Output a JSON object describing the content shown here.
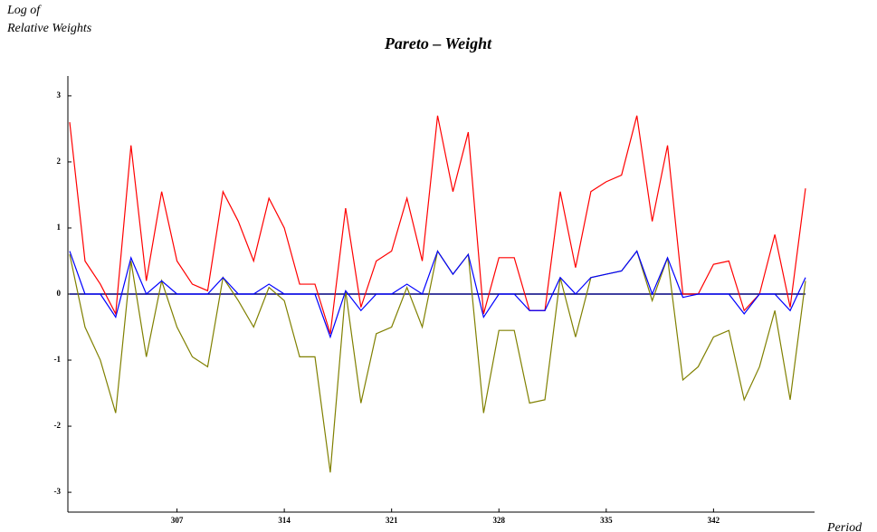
{
  "chart_data": {
    "type": "line",
    "title": "Pareto – Weight",
    "ylabel": [
      "Log of",
      "Relative Weights"
    ],
    "xlabel": "Period",
    "x": [
      300,
      301,
      302,
      303,
      304,
      305,
      306,
      307,
      308,
      309,
      310,
      311,
      312,
      313,
      314,
      315,
      316,
      317,
      318,
      319,
      320,
      321,
      322,
      323,
      324,
      325,
      326,
      327,
      328,
      329,
      330,
      331,
      332,
      333,
      334,
      335,
      336,
      337,
      338,
      339,
      340,
      341,
      342,
      343,
      344,
      345,
      346,
      347,
      348
    ],
    "series": [
      {
        "color": "#ff0000",
        "values": [
          2.6,
          0.5,
          0.15,
          -0.3,
          2.25,
          0.2,
          1.55,
          0.5,
          0.15,
          0.05,
          1.55,
          1.1,
          0.5,
          1.45,
          1.0,
          0.15,
          0.15,
          -0.6,
          1.3,
          -0.2,
          0.5,
          0.65,
          1.45,
          0.5,
          2.7,
          1.55,
          2.45,
          -0.3,
          0.55,
          0.55,
          -0.25,
          -0.25,
          1.55,
          0.4,
          1.55,
          1.7,
          1.8,
          2.7,
          1.1,
          2.25,
          0,
          0,
          0.45,
          0.5,
          -0.25,
          0,
          0.9,
          -0.2,
          1.6
        ]
      },
      {
        "color": "#808000",
        "values": [
          0.6,
          -0.5,
          -1.0,
          -1.8,
          0.5,
          -0.95,
          0.2,
          -0.5,
          -0.95,
          -1.1,
          0.25,
          -0.1,
          -0.5,
          0.1,
          -0.1,
          -0.95,
          -0.95,
          -2.7,
          0.05,
          -1.65,
          -0.6,
          -0.5,
          0.1,
          -0.5,
          0.65,
          0.3,
          0.6,
          -1.8,
          -0.55,
          -0.55,
          -1.65,
          -1.6,
          0.25,
          -0.65,
          0.25,
          0.3,
          0.35,
          0.65,
          -0.1,
          0.55,
          -1.3,
          -1.1,
          -0.65,
          -0.55,
          -1.6,
          -1.1,
          -0.25,
          -1.6,
          0.2
        ]
      },
      {
        "color": "#0000ff",
        "values": [
          0.65,
          0,
          0,
          -0.35,
          0.55,
          0,
          0.2,
          0,
          0,
          0,
          0.25,
          0,
          0,
          0.15,
          0,
          0,
          0,
          -0.65,
          0.05,
          -0.25,
          0,
          0,
          0.15,
          0,
          0.65,
          0.3,
          0.6,
          -0.35,
          0,
          0,
          -0.25,
          -0.25,
          0.25,
          0,
          0.25,
          0.3,
          0.35,
          0.65,
          0,
          0.55,
          -0.05,
          0,
          0,
          0,
          -0.3,
          0,
          0,
          -0.25,
          0.25
        ]
      }
    ],
    "xlim": [
      300,
      348
    ],
    "xticks": [
      307,
      314,
      321,
      328,
      335,
      342
    ],
    "ylim": [
      -3.3,
      3.3
    ],
    "yticks": [
      -3,
      -2,
      -1,
      0,
      1,
      2,
      3
    ]
  }
}
